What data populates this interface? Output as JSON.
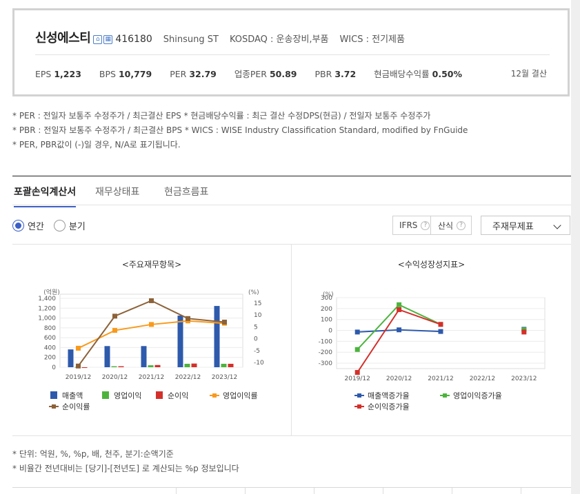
{
  "company": {
    "name": "신성에스티",
    "code": "416180",
    "eng_name": "Shinsung ST",
    "market": "KOSDAQ : 운송장비,부품",
    "wics": "WICS : 전기제품",
    "icons": [
      "home-icon",
      "building-icon"
    ]
  },
  "metrics": [
    {
      "label": "EPS",
      "value": "1,223"
    },
    {
      "label": "BPS",
      "value": "10,779"
    },
    {
      "label": "PER",
      "value": "32.79"
    },
    {
      "label": "업종PER",
      "value": "50.89"
    },
    {
      "label": "PBR",
      "value": "3.72"
    },
    {
      "label": "현금배당수익률",
      "value": "0.50%"
    }
  ],
  "settlement": "12월 결산",
  "notes": [
    "* PER : 전일자 보통주 수정주가 / 최근결산 EPS * 현금배당수익률 : 최근 결산 수정DPS(현금) / 전일자 보통주 수정주가",
    "* PBR : 전일자 보통주 수정주가 / 최근결산 BPS * WICS : WISE Industry Classification Standard, modified by FnGuide",
    "* PER, PBR값이 (-)일 경우, N/A로 표기됩니다."
  ],
  "tabs": [
    "포괄손익계산서",
    "재무상태표",
    "현금흐름표"
  ],
  "period": {
    "annual": "연간",
    "quarter": "분기"
  },
  "options": {
    "ifrs": "IFRS",
    "consolidated": "산식",
    "select": "주재무제표",
    "help": "?"
  },
  "colors": {
    "accent": "#3b5fc4",
    "revenue": "#2e5aac",
    "op_income": "#4db33d",
    "net_income": "#d4302b",
    "op_margin": "#f89a1c",
    "net_margin": "#8c6239"
  },
  "chart_data": [
    {
      "type": "bar",
      "title": "<주요재무항목>",
      "categories": [
        "2019/12",
        "2020/12",
        "2021/12",
        "2022/12",
        "2023/12"
      ],
      "left_axis_unit": "(억원)",
      "right_axis_unit": "(%)",
      "ylim_left": [
        0,
        1400
      ],
      "yticks_left": [
        "1,400",
        "1,200",
        "1,000",
        "800",
        "600",
        "400",
        "200",
        "0"
      ],
      "ylim_right": [
        -12,
        17
      ],
      "yticks_right": [
        "15",
        "10",
        "5",
        "0",
        "-5",
        "-10"
      ],
      "series": [
        {
          "name": "매출액",
          "kind": "bar",
          "axis": "left",
          "values": [
            362,
            430,
            430,
            1050,
            1245
          ]
        },
        {
          "name": "영업이익",
          "kind": "bar",
          "axis": "left",
          "values": [
            5,
            20,
            40,
            70,
            70
          ]
        },
        {
          "name": "순이익",
          "kind": "bar",
          "axis": "left",
          "values": [
            -15,
            20,
            45,
            75,
            70
          ]
        },
        {
          "name": "영업이익률",
          "kind": "line",
          "axis": "right",
          "values": [
            -4,
            3.5,
            6,
            7.5,
            6.5
          ]
        },
        {
          "name": "순이익률",
          "kind": "line",
          "axis": "right",
          "values": [
            -11.5,
            9.5,
            16,
            8.5,
            7
          ]
        }
      ],
      "legend_position": "bottom"
    },
    {
      "type": "line",
      "title": "<수익성장성지표>",
      "categories": [
        "2019/12",
        "2020/12",
        "2021/12",
        "2022/12",
        "2023/12"
      ],
      "left_axis_unit": "(%)",
      "ylim": [
        -350,
        300
      ],
      "yticks": [
        "300",
        "200",
        "100",
        "0",
        "-100",
        "-200",
        "-300"
      ],
      "series": [
        {
          "name": "매출액증가율",
          "values": [
            -15,
            5,
            -10,
            null,
            10
          ]
        },
        {
          "name": "영업이익증가율",
          "values": [
            -175,
            235,
            55,
            null,
            5
          ]
        },
        {
          "name": "순이익증가율",
          "values": [
            -385,
            190,
            55,
            null,
            -15
          ]
        }
      ],
      "legend_position": "bottom"
    }
  ],
  "footnotes": [
    "* 단위: 억원, %, %p, 배, 천주, 분기:순액기준",
    "* 비율간 전년대비는 [당기]-[전년도] 로 계산되는 %p 정보입니다"
  ]
}
